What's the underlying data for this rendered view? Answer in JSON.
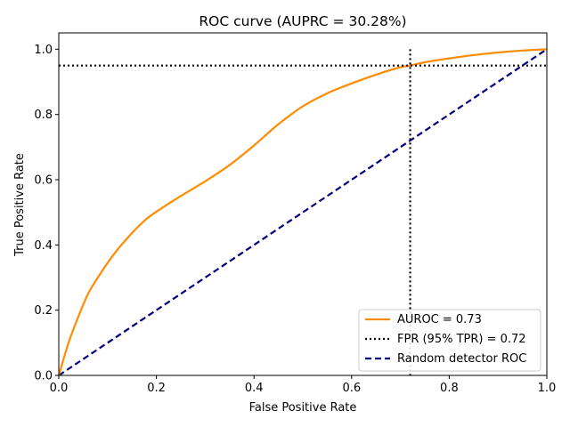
{
  "chart_data": {
    "type": "line",
    "title": "ROC curve (AUPRC = 30.28%)",
    "xlabel": "False Positive Rate",
    "ylabel": "True Positive Rate",
    "xlim": [
      0,
      1
    ],
    "ylim": [
      0,
      1.05
    ],
    "xticks": [
      "0.0",
      "0.2",
      "0.4",
      "0.6",
      "0.8",
      "1.0"
    ],
    "yticks": [
      "0.0",
      "0.2",
      "0.4",
      "0.6",
      "0.8",
      "1.0"
    ],
    "grid": false,
    "legend_position": "lower-right",
    "series": [
      {
        "name": "AUROC = 0.73",
        "color": "#ff8c00",
        "style": "solid",
        "x": [
          0.0,
          0.02,
          0.04,
          0.06,
          0.08,
          0.1,
          0.12,
          0.14,
          0.16,
          0.18,
          0.2,
          0.25,
          0.3,
          0.35,
          0.4,
          0.45,
          0.5,
          0.55,
          0.6,
          0.65,
          0.7,
          0.72,
          0.75,
          0.8,
          0.85,
          0.9,
          0.95,
          1.0
        ],
        "y": [
          0.0,
          0.1,
          0.18,
          0.25,
          0.3,
          0.345,
          0.385,
          0.42,
          0.452,
          0.48,
          0.502,
          0.55,
          0.595,
          0.645,
          0.705,
          0.77,
          0.825,
          0.865,
          0.895,
          0.922,
          0.945,
          0.95,
          0.96,
          0.972,
          0.982,
          0.99,
          0.996,
          1.0
        ]
      },
      {
        "name": "FPR (95% TPR) = 0.72",
        "color": "#000000",
        "style": "dotted",
        "vline_x": 0.72,
        "hline_y": 0.95
      },
      {
        "name": "Random detector ROC",
        "color": "#000080",
        "style": "dashed",
        "x": [
          0,
          1
        ],
        "y": [
          0,
          1
        ]
      }
    ]
  }
}
